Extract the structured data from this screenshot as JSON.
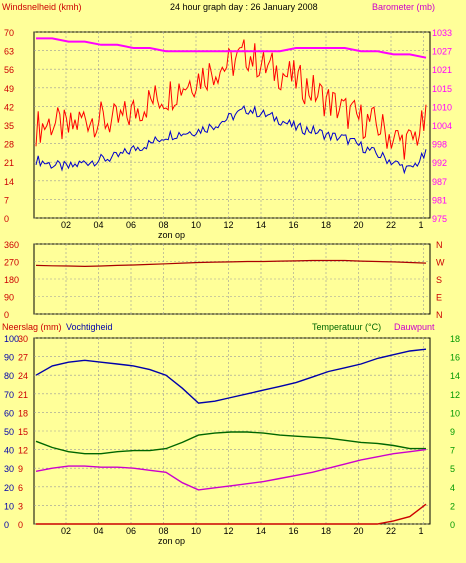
{
  "header": {
    "left_label": "Windsnelheid (kmh)",
    "title": "24 hour graph day : 26 January 2008",
    "right_label": "Barometer (mb)"
  },
  "colors": {
    "background": "#ffff99",
    "wind": "#ff0000",
    "gust_line": "#8b0000",
    "pressure": "#ff00ff",
    "wind_avg": "#0000cc",
    "direction": "#aa0000",
    "humidity": "#0000aa",
    "temperature": "#006600",
    "dewpoint": "#cc00cc",
    "rain": "#cc0000",
    "right_axis_pink": "#ff00ff",
    "right_axis_green": "#009900",
    "compass": "#cc0000"
  },
  "x_axis": {
    "ticks": [
      "02",
      "04",
      "06",
      "08",
      "10",
      "12",
      "14",
      "16",
      "18",
      "20",
      "22",
      "1"
    ],
    "sunrise_label": "zon op",
    "sunset_label": "zon op"
  },
  "panel3": {
    "left_label": "Neerslag (mm)",
    "left_label2": "Vochtigheid",
    "right_label": "Temperatuur (°C)",
    "right_label2": "Dauwpunt"
  },
  "chart_data": [
    {
      "type": "line",
      "title": "24 hour graph day : 26 January 2008",
      "ylabel": "Windsnelheid (kmh)",
      "y2label": "Barometer (mb)",
      "ylim": [
        0,
        70
      ],
      "y_ticks": [
        "70",
        "63",
        "56",
        "49",
        "42",
        "35",
        "28",
        "21",
        "14",
        "7",
        "0"
      ],
      "y2lim": [
        975,
        1033
      ],
      "y2_ticks": [
        "1033",
        "1027",
        "1021",
        "1015",
        "1010",
        "1004",
        "998",
        "992",
        "987",
        "981",
        "975"
      ],
      "x": [
        1,
        2,
        3,
        4,
        5,
        6,
        7,
        8,
        9,
        10,
        11,
        12,
        13,
        14,
        15,
        16,
        17,
        18,
        19,
        20,
        21,
        22,
        23,
        24,
        25
      ],
      "series": [
        {
          "values": [
            34,
            36,
            33,
            38,
            37,
            36,
            40,
            44,
            46,
            50,
            53,
            56,
            58,
            62,
            57,
            55,
            52,
            48,
            44,
            40,
            37,
            35,
            30,
            28,
            36
          ]
        },
        {
          "values": [
            22,
            20,
            19,
            21,
            22,
            23,
            26,
            28,
            31,
            32,
            33,
            35,
            38,
            41,
            39,
            37,
            34,
            33,
            31,
            30,
            27,
            24,
            21,
            18,
            24
          ]
        },
        {
          "values": [
            1031,
            1031,
            1030,
            1030,
            1029,
            1029,
            1028,
            1028,
            1027,
            1027,
            1027,
            1027,
            1027,
            1027,
            1027,
            1027,
            1028,
            1028,
            1028,
            1028,
            1027,
            1027,
            1026,
            1026,
            1025
          ]
        }
      ]
    },
    {
      "type": "line",
      "ylim": [
        0,
        360
      ],
      "y_ticks": [
        "360",
        "270",
        "180",
        "90",
        "0"
      ],
      "compass": [
        "N",
        "W",
        "S",
        "E",
        "N"
      ],
      "x": [
        1,
        2,
        3,
        4,
        5,
        6,
        7,
        8,
        9,
        10,
        11,
        12,
        13,
        14,
        15,
        16,
        17,
        18,
        19,
        20,
        21,
        22,
        23,
        24,
        25
      ],
      "series": [
        {
          "values": [
            250,
            248,
            247,
            245,
            247,
            250,
            252,
            255,
            258,
            262,
            265,
            267,
            268,
            270,
            270,
            272,
            273,
            275,
            275,
            275,
            272,
            270,
            268,
            265,
            262
          ]
        }
      ]
    },
    {
      "type": "line",
      "ylim": [
        0,
        100
      ],
      "y_ticks": [
        "100",
        "90",
        "80",
        "70",
        "60",
        "50",
        "40",
        "30",
        "20",
        "10",
        "0"
      ],
      "y_ticks_rain": [
        "30",
        "27",
        "24",
        "21",
        "18",
        "15",
        "12",
        "9",
        "6",
        "3",
        "0"
      ],
      "y2lim": [
        0,
        18
      ],
      "y2_ticks": [
        "18",
        "16",
        "14",
        "12",
        "10",
        "9",
        "7",
        "5",
        "4",
        "2",
        "0"
      ],
      "x": [
        1,
        2,
        3,
        4,
        5,
        6,
        7,
        8,
        9,
        10,
        11,
        12,
        13,
        14,
        15,
        16,
        17,
        18,
        19,
        20,
        21,
        22,
        23,
        24,
        25
      ],
      "series": [
        {
          "values": [
            80,
            85,
            87,
            88,
            87,
            86,
            85,
            83,
            80,
            73,
            65,
            66,
            68,
            70,
            72,
            74,
            76,
            79,
            82,
            84,
            86,
            89,
            91,
            93,
            94
          ]
        },
        {
          "values": [
            8.0,
            7.4,
            7.0,
            6.8,
            6.8,
            7.0,
            7.1,
            7.1,
            7.3,
            7.9,
            8.6,
            8.8,
            8.9,
            8.9,
            8.8,
            8.6,
            8.5,
            8.4,
            8.3,
            8.1,
            7.9,
            7.8,
            7.6,
            7.3,
            7.3
          ]
        },
        {
          "values": [
            5.1,
            5.4,
            5.6,
            5.6,
            5.5,
            5.5,
            5.4,
            5.2,
            5.0,
            4.0,
            3.3,
            3.5,
            3.7,
            3.9,
            4.1,
            4.4,
            4.7,
            5.0,
            5.4,
            5.8,
            6.2,
            6.5,
            6.8,
            7.0,
            7.2
          ]
        },
        {
          "values": [
            0,
            0,
            0,
            0,
            0,
            0,
            0,
            0,
            0,
            0,
            0,
            0,
            0,
            0,
            0,
            0,
            0,
            0,
            0,
            0,
            0,
            0,
            0.5,
            1.2,
            3.2
          ]
        }
      ]
    }
  ]
}
